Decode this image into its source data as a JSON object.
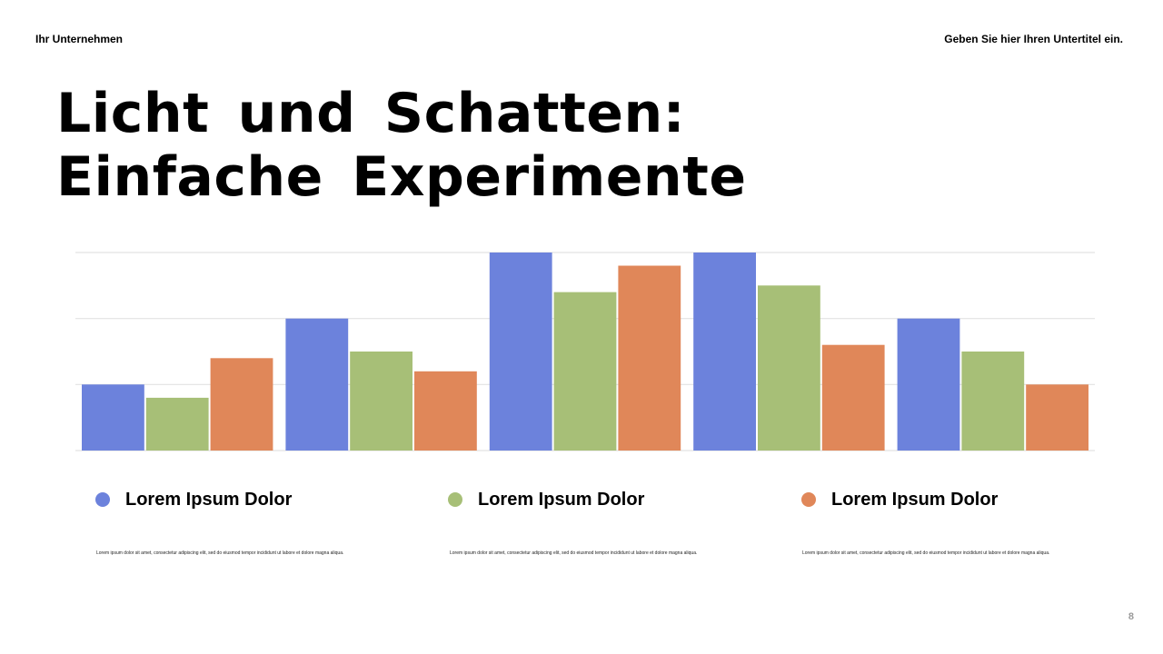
{
  "header": {
    "company": "Ihr Unternehmen",
    "subtitle": "Geben Sie hier Ihren Untertitel ein."
  },
  "title": {
    "line1": "Licht und Schatten:",
    "line2": "Einfache Experimente"
  },
  "legend": [
    {
      "label": "Lorem Ipsum Dolor",
      "color": "#6c82dc",
      "description": "Lorem ipsum dolor sit amet, consectetur adipiscing elit, sed do eiusmod tempor incididunt ut labore et dolore magna aliqua."
    },
    {
      "label": "Lorem Ipsum Dolor",
      "color": "#a7bf77",
      "description": "Lorem ipsum dolor sit amet, consectetur adipiscing elit, sed do eiusmod tempor incididunt ut labore et dolore magna aliqua."
    },
    {
      "label": "Lorem Ipsum Dolor",
      "color": "#e08759",
      "description": "Lorem ipsum dolor sit amet, consectetur adipiscing elit, sed do eiusmod tempor incididunt ut labore et dolore magna aliqua."
    }
  ],
  "chart_data": {
    "type": "bar",
    "categories": [
      "",
      "",
      "",
      "",
      ""
    ],
    "series": [
      {
        "color": "#6c82dc",
        "values": [
          1,
          2,
          3,
          3,
          2
        ]
      },
      {
        "color": "#a7bf77",
        "values": [
          0.8,
          1.5,
          2.4,
          2.5,
          1.5
        ]
      },
      {
        "color": "#e08759",
        "values": [
          1.4,
          1.2,
          2.8,
          1.6,
          1
        ]
      }
    ],
    "ylim": [
      0,
      3
    ],
    "grid": true,
    "legend_position": "bottom"
  },
  "page_number": "8"
}
